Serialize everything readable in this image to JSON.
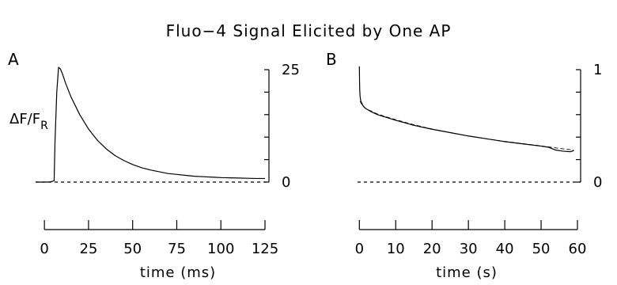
{
  "title": "Fluo−4 Signal Elicited by One AP",
  "chart_data": [
    {
      "panel": "A",
      "type": "line",
      "ylabel_main": "ΔF/F",
      "ylabel_sub": "R",
      "xlabel": "time (ms)",
      "xlim": [
        -5,
        125
      ],
      "ylim": [
        0,
        25
      ],
      "x_ticks": [
        0,
        25,
        50,
        75,
        100,
        125
      ],
      "y_ticks": [
        0,
        25
      ],
      "y_axis_side": "right",
      "baseline": 0,
      "series": [
        {
          "x": [
            -5,
            0,
            3,
            5.5,
            6,
            7,
            8,
            9,
            10,
            12,
            15,
            20,
            25,
            30,
            35,
            40,
            45,
            50,
            55,
            60,
            65,
            70,
            75,
            80,
            85,
            90,
            95,
            100,
            105,
            110,
            115,
            120,
            125
          ],
          "y": [
            0,
            0,
            0,
            0.3,
            9,
            20,
            25.5,
            25.2,
            24.3,
            22.0,
            19.0,
            15.0,
            11.8,
            9.3,
            7.4,
            5.9,
            4.8,
            3.9,
            3.2,
            2.7,
            2.3,
            1.9,
            1.7,
            1.5,
            1.3,
            1.2,
            1.1,
            1.0,
            0.95,
            0.9,
            0.85,
            0.8,
            0.8
          ]
        }
      ]
    },
    {
      "panel": "B",
      "type": "line",
      "xlabel": "time (s)",
      "xlim": [
        -0.5,
        60
      ],
      "ylim": [
        0,
        1
      ],
      "x_ticks": [
        0,
        10,
        20,
        30,
        40,
        50,
        60
      ],
      "y_ticks": [
        0,
        1
      ],
      "y_axis_side": "right",
      "baseline": 0,
      "series": [
        {
          "style": "solid",
          "x": [
            0,
            0.05,
            0.1,
            0.2,
            0.4,
            0.7,
            1,
            1.5,
            2,
            3,
            4,
            5,
            7,
            10,
            15,
            20,
            25,
            30,
            35,
            40,
            45,
            50,
            52,
            54,
            56,
            58,
            59
          ],
          "y": [
            1.03,
            0.9,
            0.82,
            0.76,
            0.72,
            0.7,
            0.68,
            0.66,
            0.65,
            0.63,
            0.615,
            0.6,
            0.58,
            0.55,
            0.505,
            0.47,
            0.44,
            0.41,
            0.385,
            0.36,
            0.34,
            0.32,
            0.31,
            0.285,
            0.275,
            0.27,
            0.28
          ]
        },
        {
          "style": "dashed",
          "x": [
            0.2,
            0.5,
            1,
            2,
            3,
            5,
            10,
            15,
            20,
            25,
            30,
            35,
            40,
            45,
            50,
            55,
            59
          ],
          "y": [
            0.72,
            0.7,
            0.675,
            0.65,
            0.635,
            0.605,
            0.555,
            0.51,
            0.472,
            0.44,
            0.41,
            0.385,
            0.362,
            0.342,
            0.322,
            0.3,
            0.285
          ]
        }
      ]
    }
  ]
}
